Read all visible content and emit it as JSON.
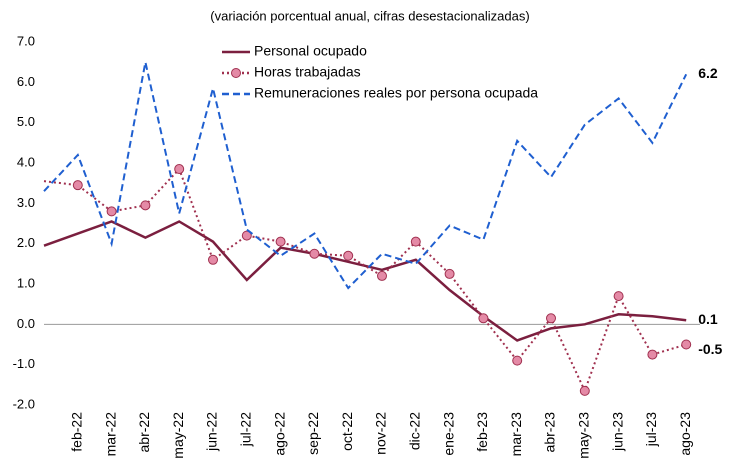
{
  "chart_data": {
    "type": "line",
    "subtitle": "(variación porcentual anual, cifras desestacionalizadas)",
    "categories": [
      null,
      "feb-22",
      "mar-22",
      "abr-22",
      "may-22",
      "jun-22",
      "jul-22",
      "ago-22",
      "sep-22",
      "oct-22",
      "nov-22",
      "dic-22",
      "ene-23",
      "feb-23",
      "mar-23",
      "abr-23",
      "may-23",
      "jun-23",
      "jul-23",
      "ago-23"
    ],
    "series": [
      {
        "name": "Personal ocupado",
        "color": "#7b1f3f",
        "style": "solid",
        "values": [
          1.95,
          2.25,
          2.55,
          2.15,
          2.55,
          2.05,
          1.1,
          1.9,
          1.75,
          1.55,
          1.35,
          1.6,
          0.85,
          0.2,
          -0.4,
          -0.1,
          0.0,
          0.25,
          0.2,
          0.1
        ],
        "value_labels": [
          null,
          null,
          null,
          null,
          null,
          null,
          null,
          null,
          null,
          null,
          null,
          null,
          null,
          null,
          null,
          null,
          null,
          null,
          null,
          "0.1"
        ],
        "label_color": "#7b1f3f"
      },
      {
        "name": "Horas trabajadas",
        "color": "#a0304f",
        "marker_color": "#e48aa6",
        "style": "dotted",
        "values": [
          3.55,
          3.45,
          2.8,
          2.95,
          3.85,
          1.6,
          2.2,
          2.05,
          1.75,
          1.7,
          1.2,
          2.05,
          1.25,
          0.15,
          -0.9,
          0.15,
          -1.65,
          0.7,
          -0.75,
          -0.5
        ],
        "value_labels": [
          null,
          null,
          null,
          null,
          null,
          null,
          null,
          null,
          null,
          null,
          null,
          null,
          null,
          null,
          null,
          null,
          null,
          null,
          null,
          "-0.5"
        ],
        "label_color": "#e0328a"
      },
      {
        "name": "Remuneraciones reales por persona ocupada",
        "color": "#1f5fd0",
        "style": "dashed",
        "values": [
          3.3,
          4.2,
          2.0,
          6.5,
          2.75,
          5.85,
          2.35,
          1.7,
          2.25,
          0.9,
          1.75,
          1.5,
          2.45,
          2.1,
          4.55,
          3.65,
          4.95,
          5.6,
          4.5,
          6.2
        ],
        "value_labels": [
          null,
          null,
          null,
          null,
          null,
          null,
          null,
          null,
          null,
          null,
          null,
          null,
          null,
          null,
          null,
          null,
          null,
          null,
          null,
          "6.2"
        ],
        "label_color": "#2e8bc0"
      }
    ],
    "ylim": [
      -2,
      7
    ],
    "yticks": [
      {
        "value": -2,
        "label": "-2.0"
      },
      {
        "value": -1,
        "label": "-1.0"
      },
      {
        "value": 0,
        "label": "0.0"
      },
      {
        "value": 1,
        "label": "1.0"
      },
      {
        "value": 2,
        "label": "2.0"
      },
      {
        "value": 3,
        "label": "3.0"
      },
      {
        "value": 4,
        "label": "4.0"
      },
      {
        "value": 5,
        "label": "5.0"
      },
      {
        "value": 6,
        "label": "6.0"
      },
      {
        "value": 7,
        "label": "7.0"
      }
    ],
    "zero_line": true
  }
}
